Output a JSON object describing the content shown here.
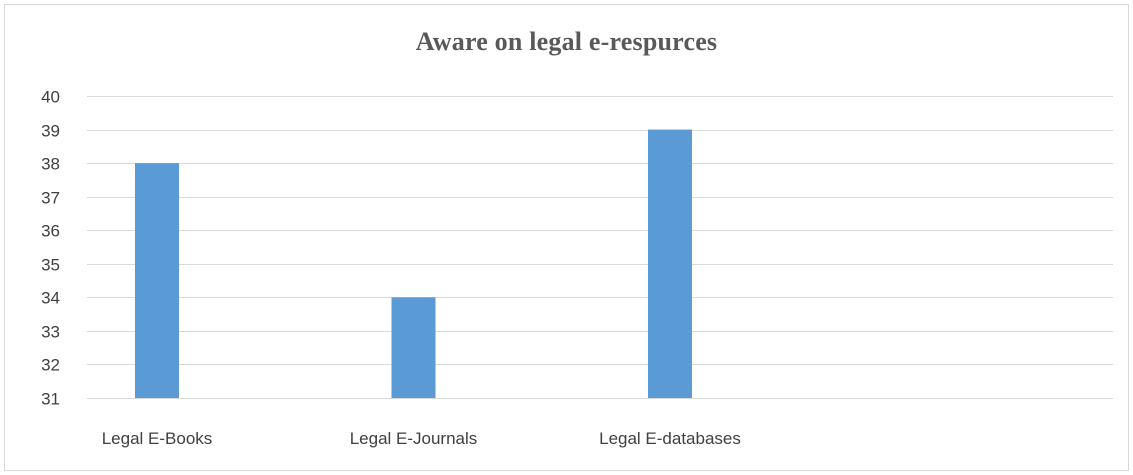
{
  "chart_data": {
    "type": "bar",
    "title": "Aware on legal e-respurces",
    "categories": [
      "Legal E-Books",
      "Legal E-Journals",
      "Legal E-databases",
      ""
    ],
    "series": [
      {
        "values": [
          38,
          34,
          39,
          null
        ]
      }
    ],
    "ylim": [
      31,
      40
    ],
    "yticks": [
      31,
      32,
      33,
      34,
      35,
      36,
      37,
      38,
      39,
      40
    ],
    "grid": true,
    "legend": "none",
    "colors": {
      "bar": "#5b9bd5",
      "grid": "#d9d9d9",
      "text": "#404040",
      "title": "#595959"
    }
  }
}
